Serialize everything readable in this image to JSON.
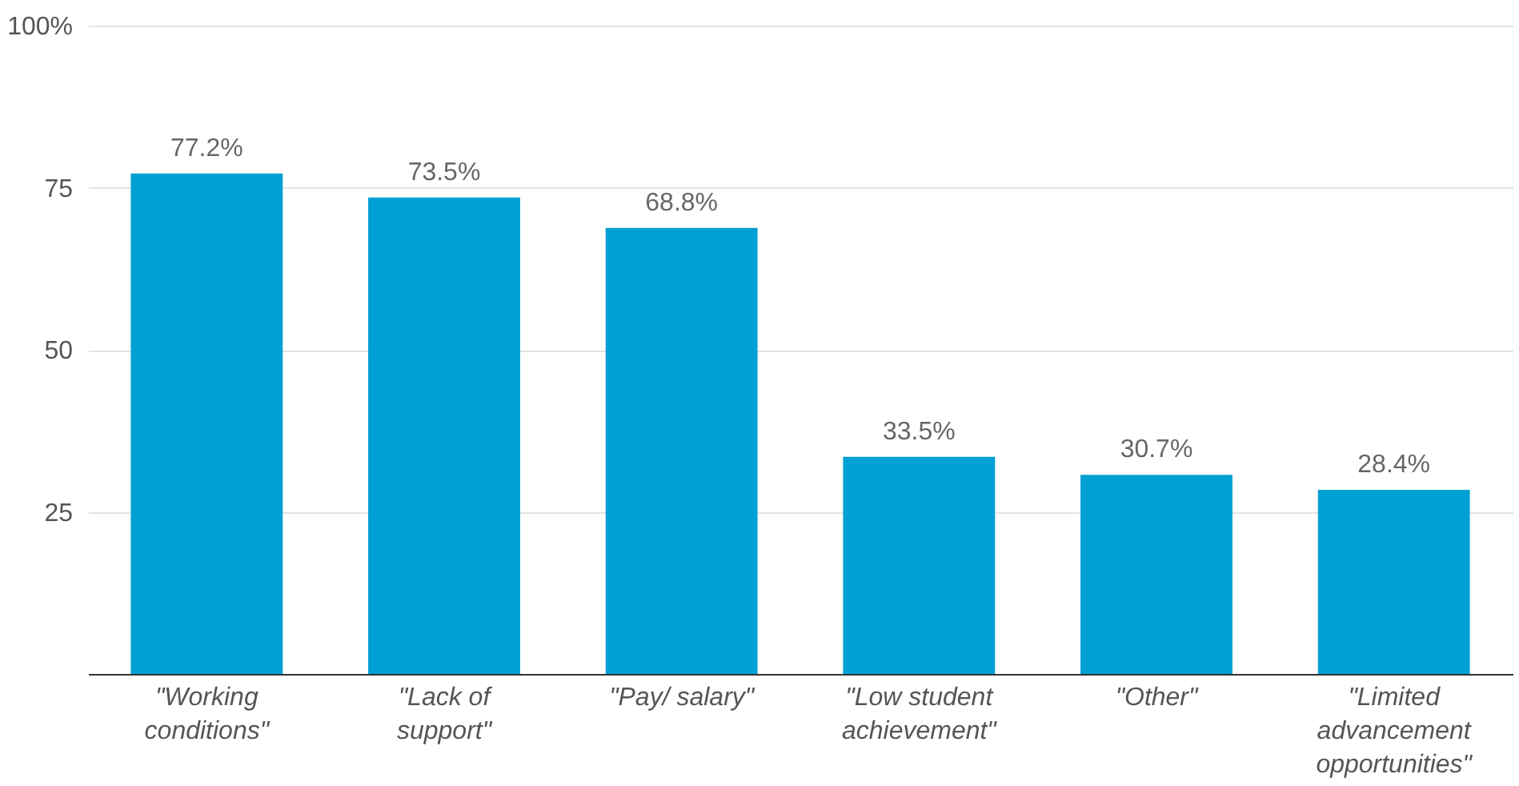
{
  "chart_data": {
    "type": "bar",
    "categories": [
      "\"Working conditions\"",
      "\"Lack of support\"",
      "\"Pay/ salary\"",
      "\"Low student achievement\"",
      "\"Other\"",
      "\"Limited advancement opportunities\""
    ],
    "values": [
      77.2,
      73.5,
      68.8,
      33.5,
      30.7,
      28.4
    ],
    "value_labels": [
      "77.2%",
      "73.5%",
      "68.8%",
      "33.5%",
      "30.7%",
      "28.4%"
    ],
    "color": "#009fd4",
    "ylim": [
      0,
      100
    ],
    "yticks": [
      25,
      50,
      75,
      {
        "value": 100,
        "label": "100%"
      }
    ],
    "grid": "y"
  }
}
